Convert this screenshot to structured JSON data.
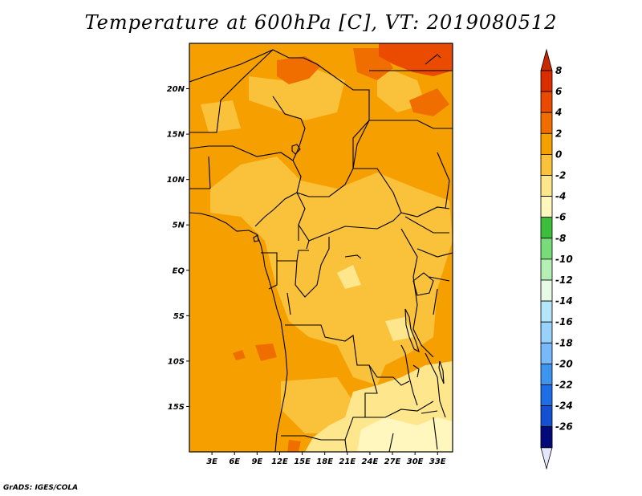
{
  "title": "Temperature at 600hPa [C], VT: 2019080512",
  "credit": "GrADS: IGES/COLA",
  "map": {
    "lon_range": [
      0,
      35
    ],
    "lat_range": [
      -20,
      25
    ],
    "lat_ticks": [
      {
        "label": "20N",
        "value": 20
      },
      {
        "label": "15N",
        "value": 15
      },
      {
        "label": "10N",
        "value": 10
      },
      {
        "label": "5N",
        "value": 5
      },
      {
        "label": "EQ",
        "value": 0
      },
      {
        "label": "5S",
        "value": -5
      },
      {
        "label": "10S",
        "value": -10
      },
      {
        "label": "15S",
        "value": -15
      }
    ],
    "lon_ticks": [
      {
        "label": "3E",
        "value": 3
      },
      {
        "label": "6E",
        "value": 6
      },
      {
        "label": "9E",
        "value": 9
      },
      {
        "label": "12E",
        "value": 12
      },
      {
        "label": "15E",
        "value": 15
      },
      {
        "label": "18E",
        "value": 18
      },
      {
        "label": "21E",
        "value": 21
      },
      {
        "label": "24E",
        "value": 24
      },
      {
        "label": "27E",
        "value": 27
      },
      {
        "label": "30E",
        "value": 30
      },
      {
        "label": "33E",
        "value": 33
      }
    ]
  },
  "colorbar": {
    "levels": [
      {
        "label": "8",
        "color": "#dc2d00"
      },
      {
        "label": "6",
        "color": "#ea4b00"
      },
      {
        "label": "4",
        "color": "#f06e00"
      },
      {
        "label": "2",
        "color": "#f5a000"
      },
      {
        "label": "0",
        "color": "#fac13a"
      },
      {
        "label": "-2",
        "color": "#fde68c"
      },
      {
        "label": "-4",
        "color": "#fff7be"
      },
      {
        "label": "-6",
        "color": "#3cbe3c"
      },
      {
        "label": "-8",
        "color": "#78dc78"
      },
      {
        "label": "-10",
        "color": "#b4f0b4"
      },
      {
        "label": "-12",
        "color": "#e6fae6"
      },
      {
        "label": "-14",
        "color": "#b4e6fa"
      },
      {
        "label": "-16",
        "color": "#96d2fa"
      },
      {
        "label": "-18",
        "color": "#78b9fa"
      },
      {
        "label": "-20",
        "color": "#3c96f0"
      },
      {
        "label": "-22",
        "color": "#1e6ee6"
      },
      {
        "label": "-24",
        "color": "#1450d2"
      },
      {
        "label": "-26",
        "color": "#0a3cb4"
      }
    ],
    "top_color": "#c82800",
    "bottom_color": "#e6e6ff",
    "deep_color": "#000a78"
  }
}
